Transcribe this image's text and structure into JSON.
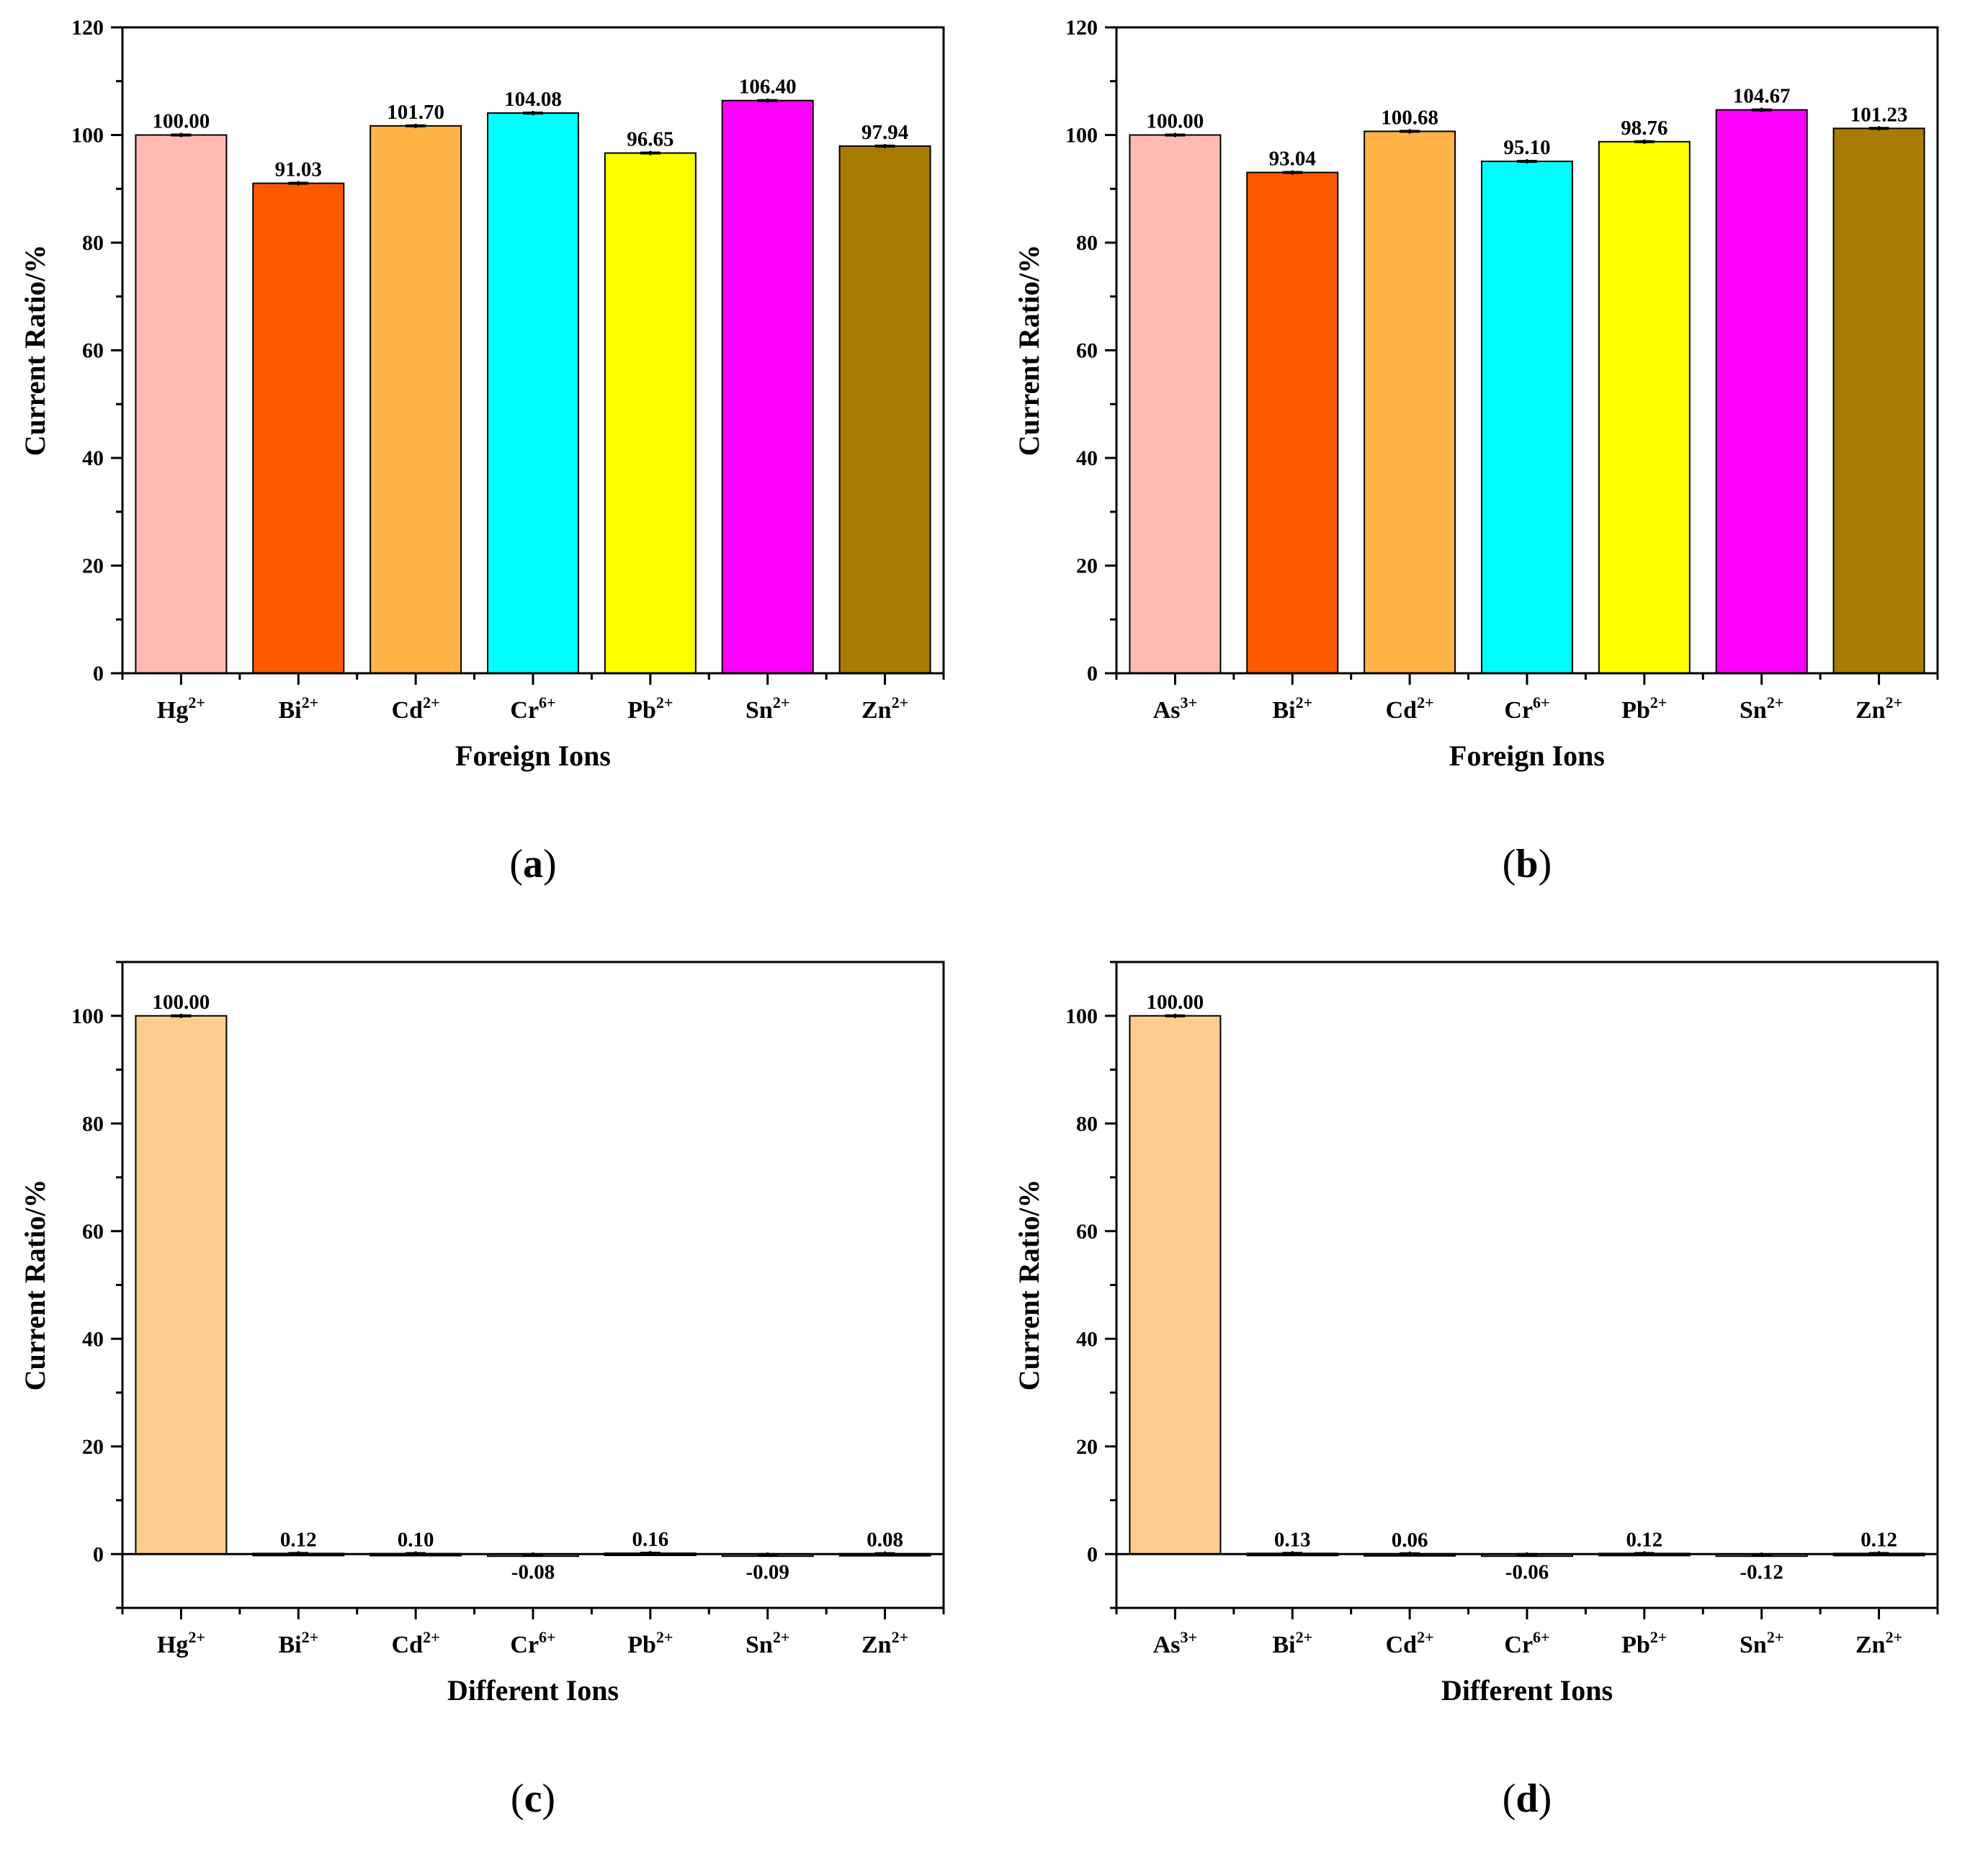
{
  "figure": {
    "panels": [
      {
        "caption": "a",
        "chart_data": {
          "type": "bar",
          "title": "",
          "xlabel": "Foreign Ions",
          "ylabel": "Current Ratio/%",
          "ylim": [
            0,
            120
          ],
          "yticks": [
            0,
            20,
            40,
            60,
            80,
            100,
            120
          ],
          "categories": [
            {
              "base": "Hg",
              "sup": "2+"
            },
            {
              "base": "Bi",
              "sup": "2+"
            },
            {
              "base": "Cd",
              "sup": "2+"
            },
            {
              "base": "Cr",
              "sup": "6+"
            },
            {
              "base": "Pb",
              "sup": "2+"
            },
            {
              "base": "Sn",
              "sup": "2+"
            },
            {
              "base": "Zn",
              "sup": "2+"
            }
          ],
          "values": [
            100.0,
            91.03,
            101.7,
            104.08,
            96.65,
            106.4,
            97.94
          ],
          "labels": [
            "100.00",
            "91.03",
            "101.70",
            "104.08",
            "96.65",
            "106.40",
            "97.94"
          ],
          "colors": [
            "#FFBBB2",
            "#FF5A00",
            "#FFB347",
            "#00FFFF",
            "#FFFF00",
            "#FF00FF",
            "#A87C00"
          ]
        }
      },
      {
        "caption": "b",
        "chart_data": {
          "type": "bar",
          "title": "",
          "xlabel": "Foreign Ions",
          "ylabel": "Current Ratio/%",
          "ylim": [
            0,
            120
          ],
          "yticks": [
            0,
            20,
            40,
            60,
            80,
            100,
            120
          ],
          "categories": [
            {
              "base": "As",
              "sup": "3+"
            },
            {
              "base": "Bi",
              "sup": "2+"
            },
            {
              "base": "Cd",
              "sup": "2+"
            },
            {
              "base": "Cr",
              "sup": "6+"
            },
            {
              "base": "Pb",
              "sup": "2+"
            },
            {
              "base": "Sn",
              "sup": "2+"
            },
            {
              "base": "Zn",
              "sup": "2+"
            }
          ],
          "values": [
            100.0,
            93.04,
            100.68,
            95.1,
            98.76,
            104.67,
            101.23
          ],
          "labels": [
            "100.00",
            "93.04",
            "100.68",
            "95.10",
            "98.76",
            "104.67",
            "101.23"
          ],
          "colors": [
            "#FFBBB2",
            "#FF5A00",
            "#FFB347",
            "#00FFFF",
            "#FFFF00",
            "#FF00FF",
            "#A87C00"
          ]
        }
      },
      {
        "caption": "c",
        "chart_data": {
          "type": "bar",
          "title": "",
          "xlabel": "Different Ions",
          "ylabel": "Current Ratio/%",
          "ylim": [
            -10,
            110
          ],
          "yticks": [
            0,
            20,
            40,
            60,
            80,
            100
          ],
          "categories": [
            {
              "base": "Hg",
              "sup": "2+"
            },
            {
              "base": "Bi",
              "sup": "2+"
            },
            {
              "base": "Cd",
              "sup": "2+"
            },
            {
              "base": "Cr",
              "sup": "6+"
            },
            {
              "base": "Pb",
              "sup": "2+"
            },
            {
              "base": "Sn",
              "sup": "2+"
            },
            {
              "base": "Zn",
              "sup": "2+"
            }
          ],
          "values": [
            100.0,
            0.12,
            0.1,
            -0.08,
            0.16,
            -0.09,
            0.08
          ],
          "labels": [
            "100.00",
            "0.12",
            "0.10",
            "-0.08",
            "0.16",
            "-0.09",
            "0.08"
          ],
          "colors": [
            "#FFCC90",
            "#FFCC90",
            "#FFCC90",
            "#FFCC90",
            "#FFCC90",
            "#FFCC90",
            "#FFCC90"
          ]
        }
      },
      {
        "caption": "d",
        "chart_data": {
          "type": "bar",
          "title": "",
          "xlabel": "Different Ions",
          "ylabel": "Current Ratio/%",
          "ylim": [
            -10,
            110
          ],
          "yticks": [
            0,
            20,
            40,
            60,
            80,
            100
          ],
          "categories": [
            {
              "base": "As",
              "sup": "3+"
            },
            {
              "base": "Bi",
              "sup": "2+"
            },
            {
              "base": "Cd",
              "sup": "2+"
            },
            {
              "base": "Cr",
              "sup": "6+"
            },
            {
              "base": "Pb",
              "sup": "2+"
            },
            {
              "base": "Sn",
              "sup": "2+"
            },
            {
              "base": "Zn",
              "sup": "2+"
            }
          ],
          "values": [
            100.0,
            0.13,
            0.06,
            -0.06,
            0.12,
            -0.12,
            0.12
          ],
          "labels": [
            "100.00",
            "0.13",
            "0.06",
            "-0.06",
            "0.12",
            "-0.12",
            "0.12"
          ],
          "colors": [
            "#FFCC90",
            "#FFCC90",
            "#FFCC90",
            "#FFCC90",
            "#FFCC90",
            "#FFCC90",
            "#FFCC90"
          ]
        }
      }
    ]
  }
}
